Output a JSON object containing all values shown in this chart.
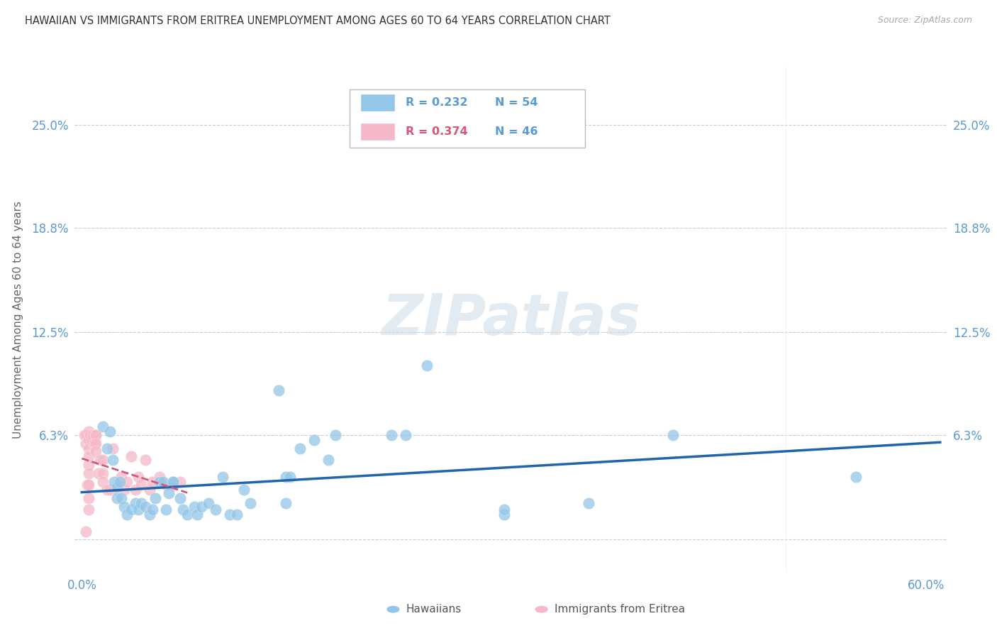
{
  "title": "HAWAIIAN VS IMMIGRANTS FROM ERITREA UNEMPLOYMENT AMONG AGES 60 TO 64 YEARS CORRELATION CHART",
  "source": "Source: ZipAtlas.com",
  "ylabel": "Unemployment Among Ages 60 to 64 years",
  "xlim": [
    -0.005,
    0.615
  ],
  "ylim": [
    -0.02,
    0.285
  ],
  "yticks": [
    0.0,
    0.063,
    0.125,
    0.188,
    0.25
  ],
  "ytick_labels": [
    "",
    "6.3%",
    "12.5%",
    "18.8%",
    "25.0%"
  ],
  "xtick_positions": [
    0.0,
    0.1,
    0.2,
    0.3,
    0.4,
    0.5,
    0.6
  ],
  "xtick_labels": [
    "0.0%",
    "",
    "",
    "",
    "",
    "",
    "60.0%"
  ],
  "legend_label1": "Hawaiians",
  "legend_label2": "Immigrants from Eritrea",
  "r1": "0.232",
  "n1": "54",
  "r2": "0.374",
  "n2": "46",
  "color_hawaiian": "#93c6e8",
  "color_eritrea": "#f5b8c8",
  "color_line_hawaiian": "#2166ac",
  "color_line_eritrea": "#d45879",
  "watermark_text": "ZIPatlas",
  "hawaiian_x": [
    0.015,
    0.018,
    0.02,
    0.022,
    0.023,
    0.025,
    0.025,
    0.027,
    0.028,
    0.03,
    0.032,
    0.035,
    0.038,
    0.04,
    0.042,
    0.045,
    0.048,
    0.05,
    0.052,
    0.055,
    0.058,
    0.06,
    0.062,
    0.065,
    0.065,
    0.07,
    0.072,
    0.075,
    0.08,
    0.082,
    0.085,
    0.09,
    0.095,
    0.1,
    0.105,
    0.11,
    0.115,
    0.12,
    0.14,
    0.145,
    0.145,
    0.148,
    0.155,
    0.165,
    0.175,
    0.18,
    0.22,
    0.23,
    0.245,
    0.3,
    0.3,
    0.36,
    0.42,
    0.55
  ],
  "hawaiian_y": [
    0.068,
    0.055,
    0.065,
    0.048,
    0.035,
    0.032,
    0.025,
    0.035,
    0.025,
    0.02,
    0.015,
    0.018,
    0.022,
    0.018,
    0.022,
    0.02,
    0.015,
    0.018,
    0.025,
    0.035,
    0.035,
    0.018,
    0.028,
    0.035,
    0.035,
    0.025,
    0.018,
    0.015,
    0.02,
    0.015,
    0.02,
    0.022,
    0.018,
    0.038,
    0.015,
    0.015,
    0.03,
    0.022,
    0.09,
    0.022,
    0.038,
    0.038,
    0.055,
    0.06,
    0.048,
    0.063,
    0.063,
    0.063,
    0.105,
    0.015,
    0.018,
    0.022,
    0.063,
    0.038
  ],
  "eritrea_x": [
    0.002,
    0.003,
    0.003,
    0.003,
    0.004,
    0.005,
    0.005,
    0.005,
    0.005,
    0.005,
    0.005,
    0.005,
    0.005,
    0.005,
    0.006,
    0.007,
    0.008,
    0.009,
    0.01,
    0.01,
    0.01,
    0.01,
    0.012,
    0.013,
    0.015,
    0.015,
    0.015,
    0.018,
    0.02,
    0.022,
    0.025,
    0.025,
    0.028,
    0.03,
    0.032,
    0.035,
    0.038,
    0.04,
    0.042,
    0.045,
    0.048,
    0.05,
    0.055,
    0.06,
    0.065,
    0.07
  ],
  "eritrea_y": [
    0.063,
    0.063,
    0.058,
    0.005,
    0.033,
    0.065,
    0.06,
    0.055,
    0.05,
    0.045,
    0.04,
    0.033,
    0.025,
    0.018,
    0.063,
    0.06,
    0.063,
    0.058,
    0.063,
    0.063,
    0.058,
    0.053,
    0.04,
    0.048,
    0.048,
    0.04,
    0.035,
    0.03,
    0.03,
    0.055,
    0.03,
    0.033,
    0.038,
    0.03,
    0.035,
    0.05,
    0.03,
    0.038,
    0.033,
    0.048,
    0.03,
    0.035,
    0.038,
    0.033,
    0.033,
    0.035
  ]
}
